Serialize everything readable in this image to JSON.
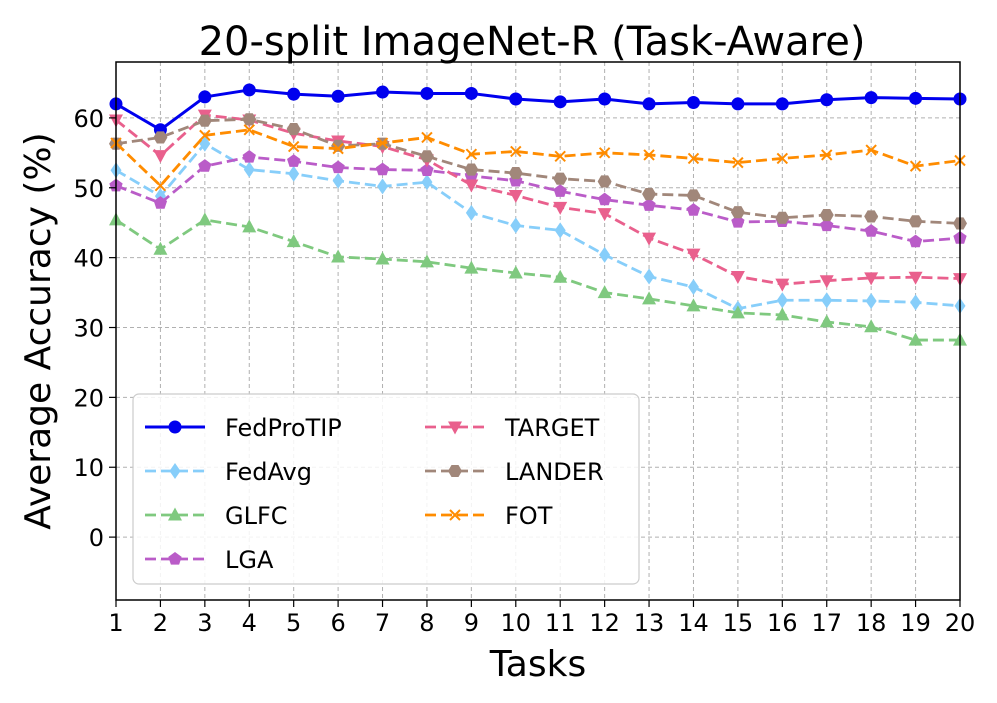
{
  "chart_data": {
    "type": "line",
    "title": "20-split ImageNet-R (Task-Aware)",
    "xlabel": "Tasks",
    "ylabel": "Average Accuracy (%)",
    "x": [
      1,
      2,
      3,
      4,
      5,
      6,
      7,
      8,
      9,
      10,
      11,
      12,
      13,
      14,
      15,
      16,
      17,
      18,
      19,
      20
    ],
    "xlim": [
      1,
      20
    ],
    "ylim": [
      -9,
      68
    ],
    "yticks": [
      0,
      10,
      20,
      30,
      40,
      50,
      60
    ],
    "grid": true,
    "legend_position": "lower-left",
    "series": [
      {
        "name": "FedProTIP",
        "color": "#0000ee",
        "marker": "circle",
        "dash": "solid",
        "values": [
          62.0,
          58.3,
          63.0,
          64.0,
          63.4,
          63.1,
          63.7,
          63.5,
          63.5,
          62.7,
          62.3,
          62.7,
          62.0,
          62.2,
          62.0,
          62.0,
          62.6,
          62.9,
          62.8,
          62.7
        ]
      },
      {
        "name": "FedAvg",
        "color": "#87cefa",
        "marker": "diamond",
        "dash": "dashed",
        "values": [
          52.5,
          48.8,
          56.3,
          52.6,
          52.0,
          51.0,
          50.2,
          50.8,
          46.4,
          44.6,
          43.9,
          40.4,
          37.3,
          35.8,
          32.7,
          33.9,
          33.9,
          33.8,
          33.6,
          33.1
        ]
      },
      {
        "name": "GLFC",
        "color": "#7fc97f",
        "marker": "triangle-up",
        "dash": "dashed",
        "values": [
          45.4,
          41.2,
          45.4,
          44.4,
          42.3,
          40.1,
          39.8,
          39.4,
          38.5,
          37.8,
          37.2,
          35.0,
          34.1,
          33.1,
          32.1,
          31.8,
          30.8,
          30.1,
          28.2,
          28.2
        ]
      },
      {
        "name": "LGA",
        "color": "#ba5cc8",
        "marker": "pentagon",
        "dash": "dashed",
        "values": [
          50.3,
          47.8,
          53.1,
          54.4,
          53.8,
          52.9,
          52.6,
          52.5,
          51.7,
          51.0,
          49.5,
          48.3,
          47.5,
          46.8,
          45.1,
          45.2,
          44.6,
          43.8,
          42.3,
          42.8
        ]
      },
      {
        "name": "TARGET",
        "color": "#e9608d",
        "marker": "triangle-down",
        "dash": "dashed",
        "values": [
          59.7,
          54.6,
          60.4,
          59.7,
          57.8,
          56.7,
          55.9,
          54.0,
          50.4,
          48.9,
          47.2,
          46.3,
          42.8,
          40.5,
          37.3,
          36.2,
          36.7,
          37.1,
          37.2,
          37.0
        ]
      },
      {
        "name": "LANDER",
        "color": "#a1877a",
        "marker": "hexagon",
        "dash": "dashed",
        "values": [
          56.3,
          57.2,
          59.6,
          59.8,
          58.4,
          56.0,
          56.3,
          54.5,
          52.6,
          52.1,
          51.3,
          50.9,
          49.1,
          48.9,
          46.5,
          45.7,
          46.1,
          45.9,
          45.2,
          44.9
        ]
      },
      {
        "name": "FOT",
        "color": "#ff8c00",
        "marker": "x",
        "dash": "dashed",
        "values": [
          56.4,
          50.3,
          57.5,
          58.3,
          55.9,
          55.6,
          56.4,
          57.2,
          54.8,
          55.2,
          54.5,
          55.0,
          54.7,
          54.2,
          53.6,
          54.2,
          54.7,
          55.4,
          53.1,
          53.9
        ]
      }
    ]
  }
}
